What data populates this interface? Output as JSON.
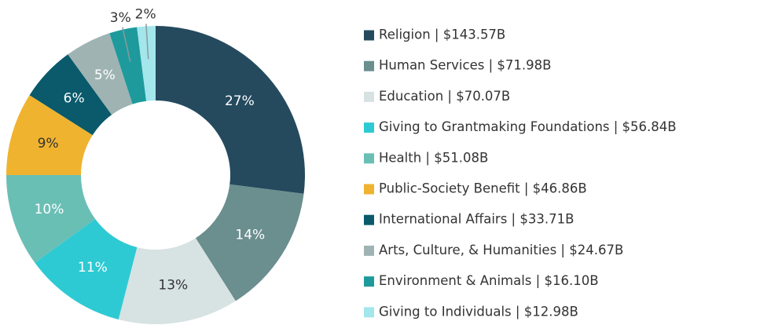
{
  "chart_data": {
    "type": "donut",
    "categories": [
      "Religion | $143.57B",
      "Human Services | $71.98B",
      "Education | $70.07B",
      "Giving to Grantmaking Foundations | $56.84B",
      "Health | $51.08B",
      "Public-Society Benefit | $46.86B",
      "International Affairs | $33.71B",
      "Arts, Culture, & Humanities | $24.67B",
      "Environment & Animals | $16.10B",
      "Giving to Individuals | $12.98B"
    ],
    "values": [
      27,
      14,
      13,
      11,
      10,
      9,
      6,
      5,
      3,
      2
    ],
    "value_labels": [
      "27%",
      "14%",
      "13%",
      "11%",
      "10%",
      "9%",
      "6%",
      "5%",
      "3%",
      "2%"
    ],
    "colors": [
      "#254a5e",
      "#6b8e8f",
      "#d7e2e2",
      "#2ecad3",
      "#6abfb5",
      "#efb32f",
      "#0a5a6b",
      "#9fb3b3",
      "#1e9a9c",
      "#a3e6ec"
    ],
    "legend": "right"
  }
}
